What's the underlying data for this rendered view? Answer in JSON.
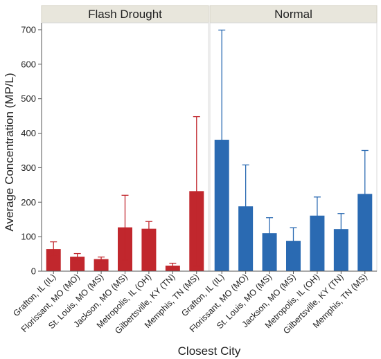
{
  "chart_data": {
    "type": "bar",
    "xlabel": "Closest City",
    "ylabel": "Average Concentration (MP/L)",
    "ylim": [
      0,
      720
    ],
    "yticks": [
      0,
      100,
      200,
      300,
      400,
      500,
      600,
      700
    ],
    "grid": false,
    "error_bars": true,
    "panels": [
      {
        "title": "Flash Drought",
        "color": "#c1272d",
        "categories": [
          "Grafton, IL (IL)",
          "Florissant, MO (MO)",
          "St. Louis, MO (MS)",
          "Jackson, MO (MS)",
          "Metropolis, IL (OH)",
          "Gilbertsville, KY (TN)",
          "Memphis, TN (MS)"
        ],
        "values": [
          64,
          42,
          35,
          127,
          123,
          16,
          232
        ],
        "err_low": [
          43,
          33,
          29,
          32,
          101,
          9,
          15
        ],
        "err_high": [
          85,
          51,
          41,
          220,
          144,
          23,
          448
        ]
      },
      {
        "title": "Normal",
        "color": "#2a6ab2",
        "categories": [
          "Grafton, IL (IL)",
          "Florissant, MO (MO)",
          "St. Louis, MO (MS)",
          "Jackson, MO (MS)",
          "Metropolis, IL (OH)",
          "Gilbertsville, KY (TN)",
          "Memphis, TN (MS)"
        ],
        "values": [
          381,
          188,
          110,
          88,
          161,
          122,
          224
        ],
        "err_low": [
          64,
          68,
          63,
          50,
          108,
          78,
          97
        ],
        "err_high": [
          699,
          308,
          155,
          126,
          215,
          167,
          350
        ]
      }
    ]
  }
}
